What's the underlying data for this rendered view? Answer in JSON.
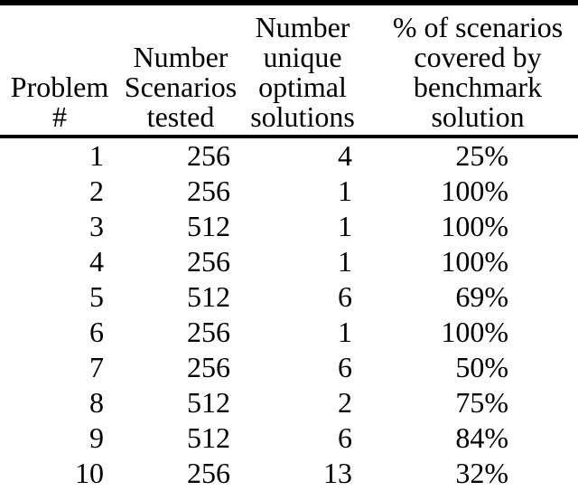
{
  "table": {
    "colors": {
      "text": "#000000",
      "background": "#ffffff",
      "rule": "#000000"
    },
    "headers": [
      {
        "label": "Problem #",
        "lines": [
          "Problem",
          "#"
        ]
      },
      {
        "label": "Number Scenarios tested",
        "lines": [
          "Number",
          "Scenarios",
          "tested"
        ]
      },
      {
        "label": "Number unique optimal solutions",
        "lines": [
          "Number",
          "unique",
          "optimal",
          "solutions"
        ]
      },
      {
        "label": "% of scenarios covered by benchmark solution",
        "lines": [
          "% of scenarios",
          "covered by",
          "benchmark",
          "solution"
        ]
      }
    ],
    "rows": [
      [
        "1",
        "256",
        "4",
        "25%"
      ],
      [
        "2",
        "256",
        "1",
        "100%"
      ],
      [
        "3",
        "512",
        "1",
        "100%"
      ],
      [
        "4",
        "256",
        "1",
        "100%"
      ],
      [
        "5",
        "512",
        "6",
        "69%"
      ],
      [
        "6",
        "256",
        "1",
        "100%"
      ],
      [
        "7",
        "256",
        "6",
        "50%"
      ],
      [
        "8",
        "512",
        "2",
        "75%"
      ],
      [
        "9",
        "512",
        "6",
        "84%"
      ],
      [
        "10",
        "256",
        "13",
        "32%"
      ]
    ]
  }
}
